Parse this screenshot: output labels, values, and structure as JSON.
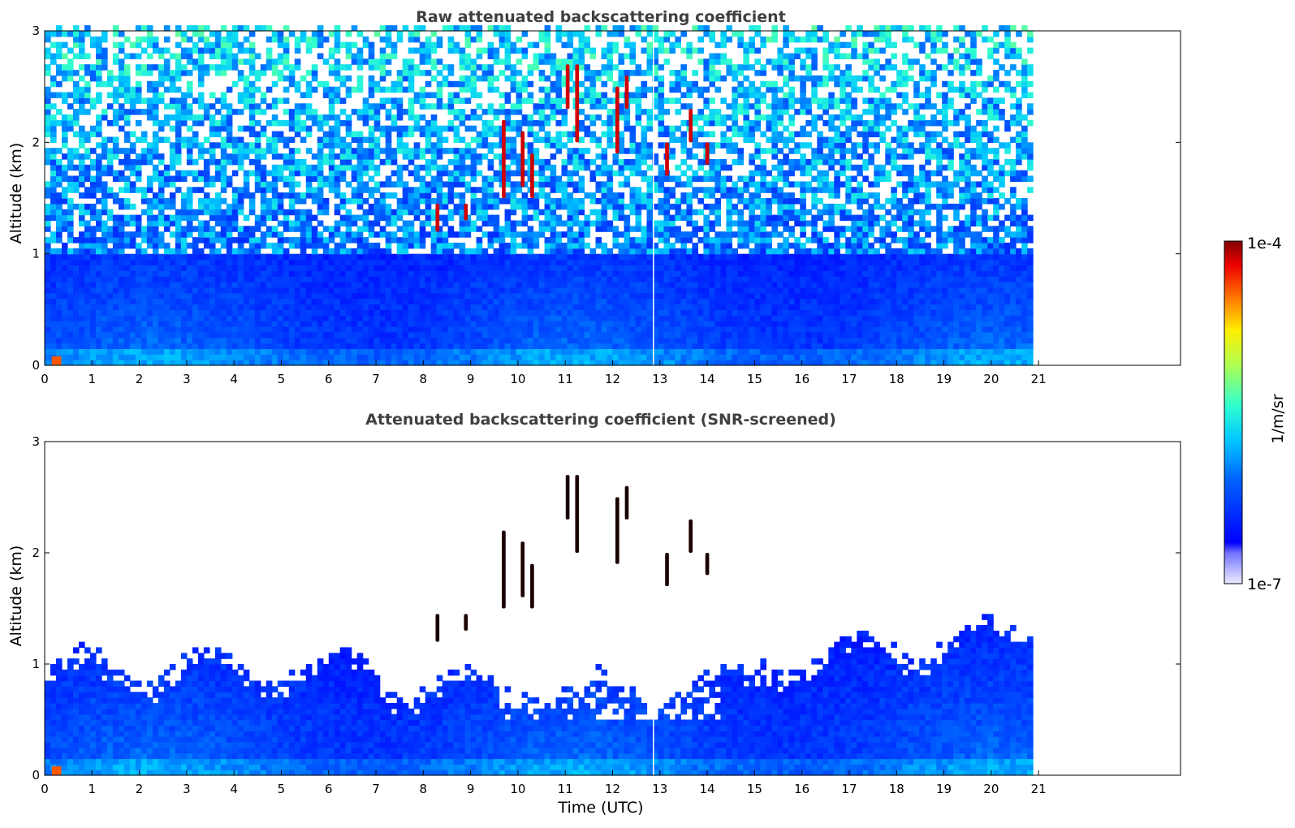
{
  "chart_data": [
    {
      "type": "heatmap",
      "title": "Raw attenuated backscattering coefficient",
      "xlabel": "",
      "ylabel": "Altitude (km)",
      "xlim": [
        0,
        24
      ],
      "ylim": [
        0,
        3
      ],
      "xticks": [
        "0",
        "1",
        "2",
        "3",
        "4",
        "5",
        "6",
        "7",
        "8",
        "9",
        "10",
        "11",
        "12",
        "13",
        "14",
        "15",
        "16",
        "17",
        "18",
        "19",
        "20",
        "21"
      ],
      "yticks": [
        "0",
        "1",
        "2",
        "3"
      ],
      "data_end_time": 20.8,
      "screened": false,
      "feature_times": [
        0.25,
        8.3,
        8.9,
        9.7,
        10.1,
        10.3,
        11.05,
        11.25,
        12.1,
        12.3,
        13.15,
        13.65,
        14.0
      ],
      "dropout_time": 12.85,
      "grid": false
    },
    {
      "type": "heatmap",
      "title": "Attenuated backscattering coefficient (SNR-screened)",
      "xlabel": "Time (UTC)",
      "ylabel": "Altitude (km)",
      "xlim": [
        0,
        24
      ],
      "ylim": [
        0,
        3
      ],
      "xticks": [
        "0",
        "1",
        "2",
        "3",
        "4",
        "5",
        "6",
        "7",
        "8",
        "9",
        "10",
        "11",
        "12",
        "13",
        "14",
        "15",
        "16",
        "17",
        "18",
        "19",
        "20",
        "21"
      ],
      "yticks": [
        "0",
        "1",
        "2",
        "3"
      ],
      "data_end_time": 20.8,
      "screened": true,
      "grid": false
    }
  ],
  "colorbar": {
    "label": "1/m/sr",
    "max_label": "1e-4",
    "min_label": "1e-7",
    "scale": "log",
    "range": [
      1e-07,
      0.0001
    ]
  }
}
